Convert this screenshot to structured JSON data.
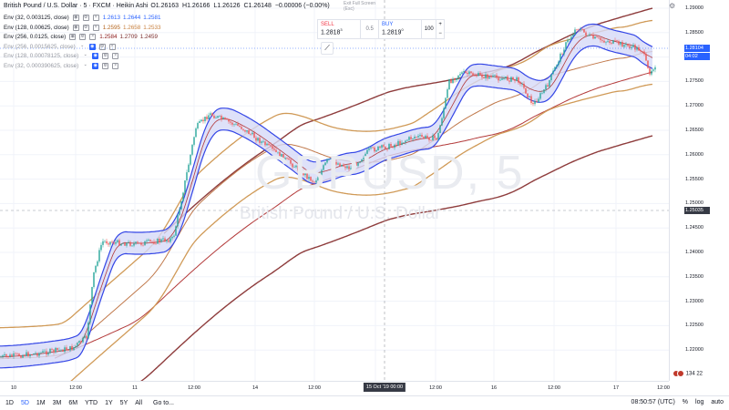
{
  "header": {
    "symbol": "British Pound / U.S. Dollar · 5 · FXCM · Heikin Ashi",
    "open": "O1.26163",
    "high": "H1.26166",
    "low": "L1.26126",
    "close": "C1.26148",
    "change": "−0.00006 (−0.00%)"
  },
  "indicators": [
    {
      "label": "Env (32, 0.003125, close)",
      "v1": "1.2613",
      "v2": "1.2644",
      "v3": "1.2581",
      "colors": [
        "#2962ff",
        "#2962ff",
        "#2962ff"
      ]
    },
    {
      "label": "Env (128, 0.00625, close)",
      "v1": "1.2595",
      "v2": "1.2658",
      "v3": "1.2533",
      "colors": [
        "#b5651d",
        "#c8813f",
        "#c8813f"
      ]
    },
    {
      "label": "Env (256, 0.0125, close)",
      "v1": "1.2584",
      "v2": "1.2709",
      "v3": "1.2459",
      "colors": [
        "#8b1a1a",
        "#7b2d2d",
        "#7b2d2d"
      ]
    },
    {
      "label": "Env (256, 0.0015625, close)"
    },
    {
      "label": "Env (128, 0.00078125, close)"
    },
    {
      "label": "Env (32, 0.000390625, close)"
    }
  ],
  "trade": {
    "sell_label": "SELL",
    "sell_price": "1.2818",
    "sell_sup": "3",
    "spread": "0.5",
    "buy_label": "BUY",
    "buy_price": "1.2819",
    "buy_sup": "0",
    "quantity": "100",
    "plus": "+",
    "minus": "−",
    "exit_fullscreen": "Exit Full Screen",
    "exit_key": "(Esc)"
  },
  "watermark": {
    "ticker": "GBPUSD, 5",
    "name": "British Pound / U.S. Dollar"
  },
  "y_axis": {
    "ticks": [
      "1.29000",
      "1.28500",
      "1.28000",
      "1.27500",
      "1.27000",
      "1.26500",
      "1.26000",
      "1.25500",
      "1.25000",
      "1.24500",
      "1.24000",
      "1.23500",
      "1.23000",
      "1.22500",
      "1.22000"
    ],
    "current_price": "1.28104",
    "current_time": "04:02",
    "crosshair_price": "1.25035"
  },
  "x_axis": {
    "ticks": [
      "10",
      "12:00",
      "11",
      "12:00",
      "14",
      "12:00",
      "12:00",
      "16",
      "12:00",
      "17",
      "12:00"
    ],
    "highlight": "15 Oct '19  00:00"
  },
  "toolbar": {
    "ranges": [
      "1D",
      "5D",
      "1M",
      "3M",
      "6M",
      "YTD",
      "1Y",
      "5Y",
      "All"
    ],
    "active_range": "5D",
    "goto": "Go to...",
    "clock": "08:50:57 (UTC)",
    "percent": "%",
    "log": "log",
    "auto": "auto"
  },
  "flags_label": "134 22",
  "colors": {
    "band_fill": "#d6d9f7",
    "band_line": "#3446e6",
    "mid_line": "#b33a3a",
    "mid_env": "#d09a57",
    "mid_env_mid": "#c0784a",
    "long_env": "#8e3c3c",
    "bull": "#26a69a",
    "bear": "#ef5350"
  }
}
